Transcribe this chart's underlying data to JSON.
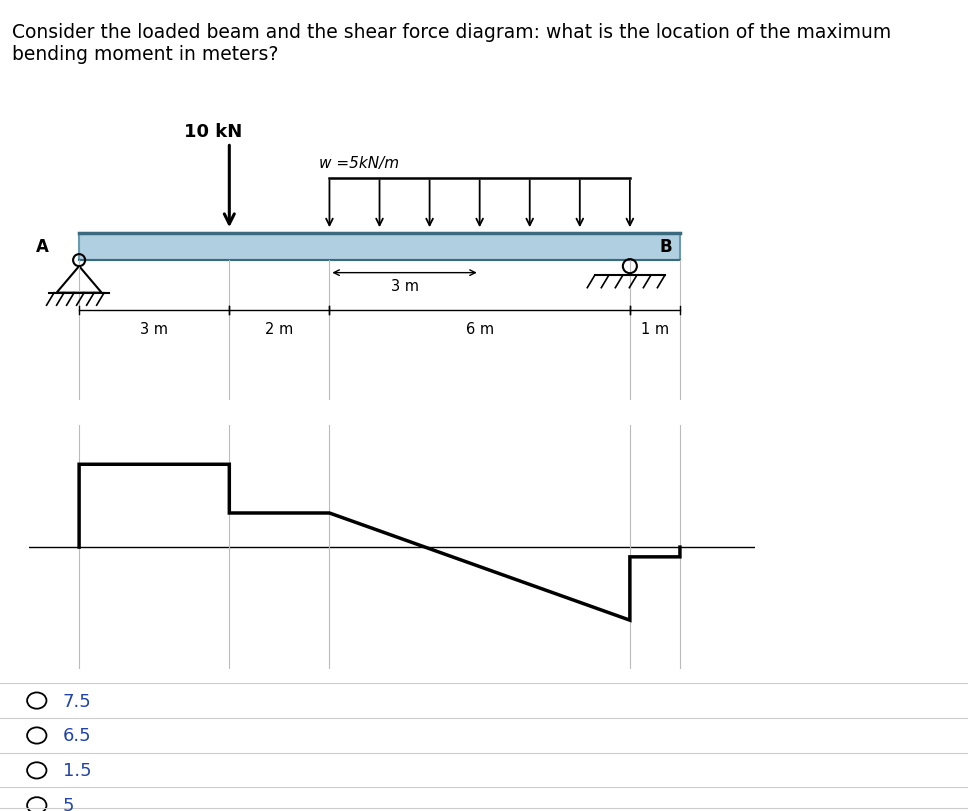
{
  "title_line1": "Consider the loaded beam and the shear force diagram: what is the location of the maximum",
  "title_line2": "bending moment in meters?",
  "title_fontsize": 13.5,
  "bg_color": "#ffffff",
  "beam_facecolor": "#b0cfe0",
  "beam_edgecolor": "#6a9ab0",
  "point_load_label": "10 kN",
  "dist_load_label": "w =5kN/m",
  "label_A": "A",
  "label_B": "B",
  "dim_labels": [
    "3 m",
    "2 m",
    "6 m",
    "1 m"
  ],
  "inner_dim_label": "3 m",
  "answer_options": [
    "7.5",
    "6.5",
    "1.5",
    "5"
  ],
  "option_fontsize": 13,
  "option_color": "#2244aa"
}
